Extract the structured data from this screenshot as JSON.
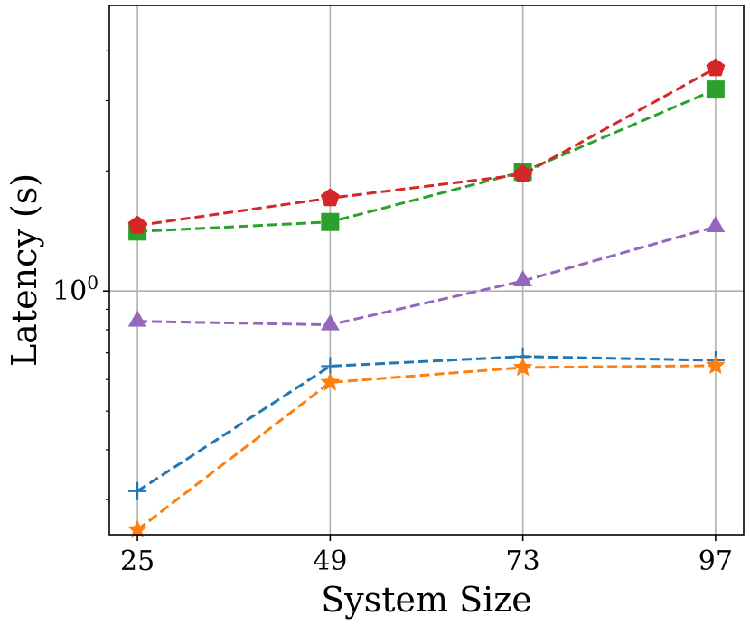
{
  "chart_data": {
    "type": "line",
    "title": "",
    "xlabel": "System Size",
    "ylabel": "Latency (s)",
    "yscale": "log",
    "grid": true,
    "legend": "none",
    "categories": [
      "25",
      "49",
      "73",
      "97"
    ],
    "x": [
      25,
      49,
      73,
      97
    ],
    "xlim": [
      21.5,
      100.5
    ],
    "ylim": [
      0.245,
      5.2
    ],
    "yticks": [
      {
        "value": 1.0,
        "label": "10",
        "exp": "0"
      }
    ],
    "minor_yticks": [
      0.3,
      0.4,
      0.5,
      0.6,
      0.7,
      0.8,
      0.9,
      2,
      3,
      4
    ],
    "series": [
      {
        "name": "blue",
        "color": "#1f77b4",
        "marker": "plus",
        "values": [
          0.315,
          0.648,
          0.685,
          0.67
        ]
      },
      {
        "name": "orange",
        "color": "#ff7f0e",
        "marker": "star",
        "values": [
          0.252,
          0.59,
          0.643,
          0.65
        ]
      },
      {
        "name": "green",
        "color": "#2ca02c",
        "marker": "square",
        "values": [
          1.41,
          1.49,
          1.99,
          3.2
        ]
      },
      {
        "name": "red",
        "color": "#d62728",
        "marker": "pentagon",
        "values": [
          1.46,
          1.71,
          1.96,
          3.62
        ]
      },
      {
        "name": "purple",
        "color": "#9467bd",
        "marker": "triangle",
        "values": [
          0.84,
          0.823,
          1.06,
          1.45
        ]
      }
    ]
  }
}
